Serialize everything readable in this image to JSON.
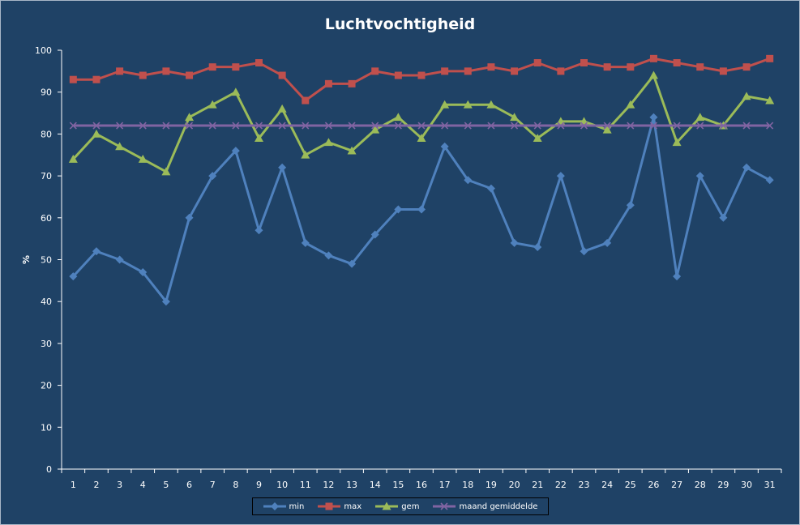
{
  "chart_data": {
    "type": "line",
    "title": "Luchtvochtigheid",
    "xlabel": "",
    "ylabel": "%",
    "ylim": [
      0,
      100
    ],
    "yticks": [
      0,
      10,
      20,
      30,
      40,
      50,
      60,
      70,
      80,
      90,
      100
    ],
    "grid": false,
    "legend_position": "bottom",
    "categories": [
      "1",
      "2",
      "3",
      "4",
      "5",
      "6",
      "7",
      "8",
      "9",
      "10",
      "11",
      "12",
      "13",
      "14",
      "15",
      "16",
      "17",
      "18",
      "19",
      "20",
      "21",
      "22",
      "23",
      "24",
      "25",
      "26",
      "27",
      "28",
      "29",
      "30",
      "31"
    ],
    "series": [
      {
        "name": "min",
        "color": "#4f81bd",
        "marker": "diamond",
        "values": [
          46,
          52,
          50,
          47,
          40,
          60,
          70,
          76,
          57,
          72,
          54,
          51,
          49,
          56,
          62,
          62,
          77,
          69,
          67,
          54,
          53,
          70,
          52,
          54,
          63,
          84,
          46,
          70,
          60,
          72,
          69
        ]
      },
      {
        "name": "max",
        "color": "#c0504d",
        "marker": "square",
        "values": [
          93,
          93,
          95,
          94,
          95,
          94,
          96,
          96,
          97,
          94,
          88,
          92,
          92,
          95,
          94,
          94,
          95,
          95,
          96,
          95,
          97,
          95,
          97,
          96,
          96,
          98,
          97,
          96,
          95,
          96,
          98
        ]
      },
      {
        "name": "gem",
        "color": "#9bbb59",
        "marker": "triangle",
        "values": [
          74,
          80,
          77,
          74,
          71,
          84,
          87,
          90,
          79,
          86,
          75,
          78,
          76,
          81,
          84,
          79,
          87,
          87,
          87,
          84,
          79,
          83,
          83,
          81,
          87,
          94,
          78,
          84,
          82,
          89,
          88
        ]
      },
      {
        "name": "maand gemiddelde",
        "color": "#8064a2",
        "marker": "x",
        "values": [
          82,
          82,
          82,
          82,
          82,
          82,
          82,
          82,
          82,
          82,
          82,
          82,
          82,
          82,
          82,
          82,
          82,
          82,
          82,
          82,
          82,
          82,
          82,
          82,
          82,
          82,
          82,
          82,
          82,
          82,
          82
        ]
      }
    ]
  },
  "colors": {
    "background": "#1f4266",
    "text": "#ffffff",
    "axis": "#ffffff"
  }
}
